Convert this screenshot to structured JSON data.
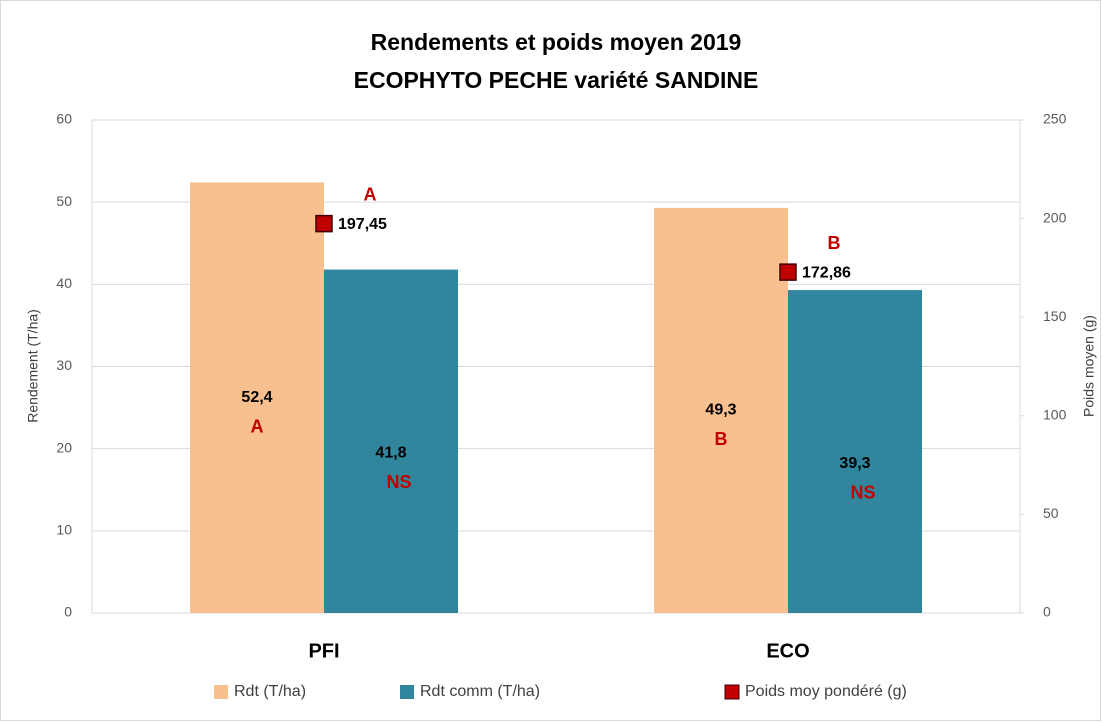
{
  "chart_data": {
    "type": "bar",
    "title": "Rendements et poids moyen 2019",
    "subtitle": "ECOPHYTO PECHE variété SANDINE",
    "y_label": "Rendement (T/ha)",
    "y2_label": "Poids moyen (g)",
    "categories": [
      "PFI",
      "ECO"
    ],
    "series": [
      {
        "name": "Rdt (T/ha)",
        "color": "#f8bf8f",
        "values": [
          52.4,
          49.3
        ],
        "value_labels": [
          "52,4",
          "49,3"
        ],
        "significance": [
          "A",
          "B"
        ]
      },
      {
        "name": "Rdt comm (T/ha)",
        "color": "#31869d",
        "values": [
          41.8,
          39.3
        ],
        "value_labels": [
          "41,8",
          "39,3"
        ],
        "significance": [
          "NS",
          "NS"
        ]
      },
      {
        "name": "Poids moy pondéré (g)",
        "color": "#c00000",
        "type": "scatter",
        "axis": "y2",
        "values": [
          197.45,
          172.86
        ],
        "value_labels": [
          "197,45",
          "172,86"
        ],
        "significance": [
          "A",
          "B"
        ]
      }
    ],
    "ylim": [
      0,
      60
    ],
    "yticks": [
      0,
      10,
      20,
      30,
      40,
      50,
      60
    ],
    "y2lim": [
      0,
      250
    ],
    "y2ticks": [
      0,
      50,
      100,
      150,
      200,
      250
    ],
    "grid": true,
    "legend": "bottom"
  }
}
